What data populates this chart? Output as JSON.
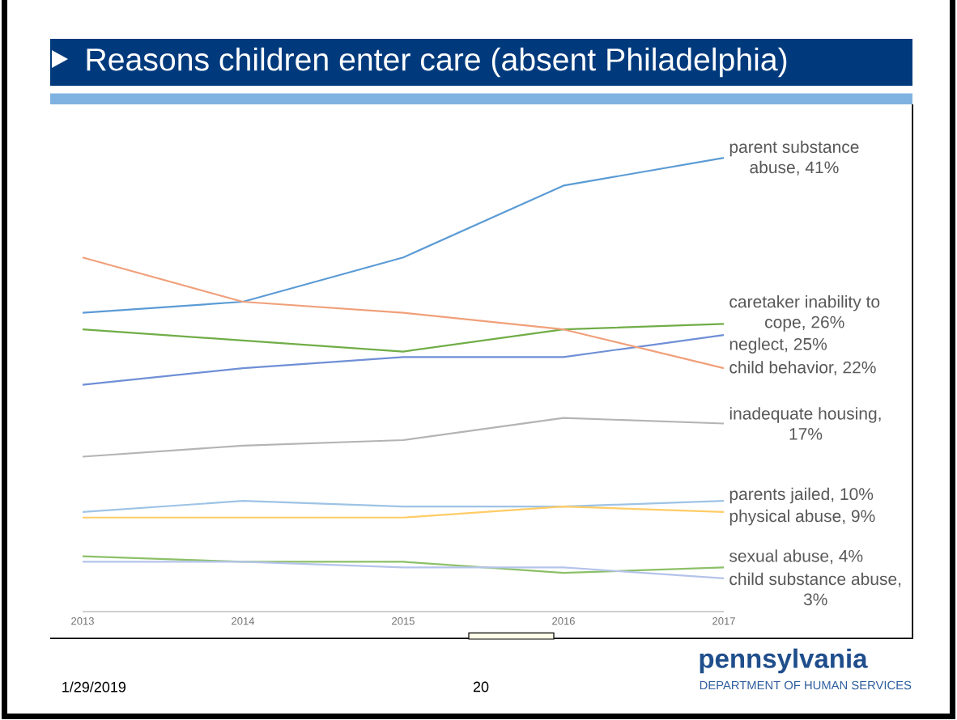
{
  "chart_data": {
    "type": "line",
    "title": "Reasons children enter care (absent Philadelphia)",
    "categories": [
      "2013",
      "2014",
      "2015",
      "2016",
      "2017"
    ],
    "tick_labels": "x",
    "marker": "none",
    "line_style": "solid",
    "series": [
      {
        "color": "#5b9bd5",
        "values": [
          27,
          28,
          32,
          38.5,
          41
        ],
        "value_labels": [
          null,
          null,
          null,
          null,
          "parent substance abuse, 41%"
        ]
      },
      {
        "color": "#70ad47",
        "values": [
          25.5,
          24.5,
          23.5,
          25.5,
          26
        ],
        "value_labels": [
          null,
          null,
          null,
          null,
          "caretaker inability to cope, 26%"
        ]
      },
      {
        "color": "#6f8fd6",
        "values": [
          20.5,
          22,
          23,
          23,
          25
        ],
        "value_labels": [
          null,
          null,
          null,
          null,
          "neglect, 25%"
        ]
      },
      {
        "color": "#f0a07a",
        "values": [
          32,
          28,
          27,
          25.5,
          22
        ],
        "value_labels": [
          null,
          null,
          null,
          null,
          "child behavior, 22%"
        ]
      },
      {
        "color": "#b4b4b4",
        "values": [
          14,
          15,
          15.5,
          17.5,
          17
        ],
        "value_labels": [
          null,
          null,
          null,
          null,
          "inadequate housing, 17%"
        ]
      },
      {
        "color": "#9dc3e6",
        "values": [
          9,
          10,
          9.5,
          9.5,
          10
        ],
        "value_labels": [
          null,
          null,
          null,
          null,
          "parents jailed, 10%"
        ]
      },
      {
        "color": "#ffcc66",
        "values": [
          8.5,
          8.5,
          8.5,
          9.5,
          9
        ],
        "value_labels": [
          null,
          null,
          null,
          null,
          "physical abuse, 9%"
        ]
      },
      {
        "color": "#8cc068",
        "values": [
          5,
          4.5,
          4.5,
          3.5,
          4
        ],
        "value_labels": [
          null,
          null,
          null,
          null,
          "sexual abuse, 4%"
        ]
      },
      {
        "color": "#b4c3ea",
        "values": [
          4.5,
          4.5,
          4,
          4,
          3
        ],
        "value_labels": [
          null,
          null,
          null,
          null,
          "child substance abuse, 3%"
        ]
      }
    ],
    "annotations": [
      "1/29/2019",
      "20",
      "pennsylvania",
      "DEPARTMENT OF HUMAN SERVICES"
    ]
  }
}
